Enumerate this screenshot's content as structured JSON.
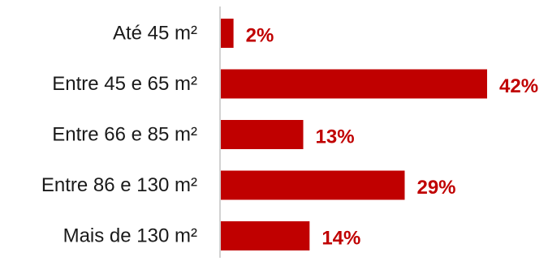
{
  "chart_data": {
    "type": "bar",
    "orientation": "horizontal",
    "categories": [
      "Até 45 m²",
      "Entre 45 e 65 m²",
      "Entre 66 e 85 m²",
      "Entre 86 e 130 m²",
      "Mais de 130 m²"
    ],
    "values": [
      2,
      42,
      13,
      29,
      14
    ],
    "value_labels": [
      "2%",
      "42%",
      "13%",
      "29%",
      "14%"
    ],
    "unit": "%",
    "title": "",
    "xlabel": "",
    "ylabel": "",
    "xlim": [
      0,
      42
    ],
    "grid": false,
    "legend": "none",
    "bar_color": "#c00000",
    "label_color": "#c00000",
    "axis_color": "#a6a6a6"
  }
}
